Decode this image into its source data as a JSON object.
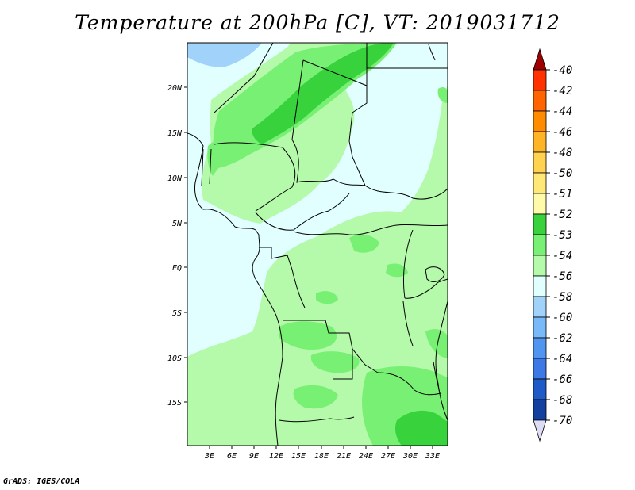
{
  "title": "Temperature at 200hPa [C], VT: 2019031712",
  "credit": "GrADS: IGES/COLA",
  "map": {
    "lat_ticks": [
      "20N",
      "15N",
      "10N",
      "5N",
      "EQ",
      "5S",
      "10S",
      "15S"
    ],
    "lon_ticks": [
      "3E",
      "6E",
      "9E",
      "12E",
      "15E",
      "18E",
      "21E",
      "24E",
      "27E",
      "30E",
      "33E"
    ],
    "fill_colors": {
      "light_blue": "#a0d2fa",
      "pale_cyan": "#e1ffff",
      "light_green": "#b4faaa",
      "mid_green": "#78f073",
      "dark_green": "#37d23c"
    }
  },
  "colorbar": {
    "labels": [
      "-40",
      "-42",
      "-44",
      "-46",
      "-48",
      "-50",
      "-51",
      "-52",
      "-53",
      "-54",
      "-56",
      "-58",
      "-60",
      "-62",
      "-64",
      "-66",
      "-68",
      "-70"
    ],
    "colors": [
      "#ff3200",
      "#ff6400",
      "#ff8c00",
      "#ffb428",
      "#ffd250",
      "#ffe878",
      "#fffaaa",
      "#37d23c",
      "#78f073",
      "#b4faaa",
      "#e1ffff",
      "#a0d2fa",
      "#78b9fa",
      "#5096f0",
      "#3c78e6",
      "#1e5ac8",
      "#1441a0",
      "#0a0a78"
    ],
    "top_triangle": "#a00000",
    "bottom_triangle": "#dcdcf5"
  }
}
